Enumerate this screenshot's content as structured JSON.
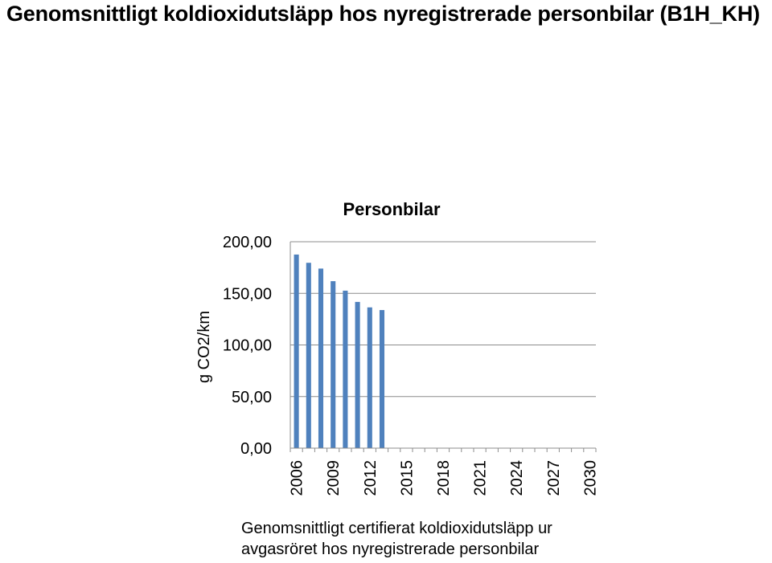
{
  "page": {
    "title": "Genomsnittligt koldioxidutsläpp hos nyregistrerade personbilar (B1H_KH)",
    "caption": "Genomsnittligt certifierat koldioxidutsläpp ur avgasröret hos nyregistrerade personbilar"
  },
  "chart_data": {
    "type": "bar",
    "title": "Personbilar",
    "ylabel": "g CO2/km",
    "xlabel": "",
    "ylim": [
      0,
      200
    ],
    "yticks": [
      "0,00",
      "50,00",
      "100,00",
      "150,00",
      "200,00"
    ],
    "categories": [
      "2006",
      "2007",
      "2008",
      "2009",
      "2010",
      "2011",
      "2012",
      "2013",
      "2014",
      "2015",
      "2016",
      "2017",
      "2018",
      "2019",
      "2020",
      "2021",
      "2022",
      "2023",
      "2024",
      "2025",
      "2026",
      "2027",
      "2028",
      "2029",
      "2030"
    ],
    "xtick_labels": [
      "2006",
      "2009",
      "2012",
      "2015",
      "2018",
      "2021",
      "2024",
      "2027",
      "2030"
    ],
    "values": [
      187.6,
      179.6,
      174.0,
      161.8,
      152.6,
      141.7,
      136.4,
      133.8,
      null,
      null,
      null,
      null,
      null,
      null,
      null,
      null,
      null,
      null,
      null,
      null,
      null,
      null,
      null,
      null,
      null
    ],
    "grid": true,
    "bar_color": "#4f81bd"
  }
}
